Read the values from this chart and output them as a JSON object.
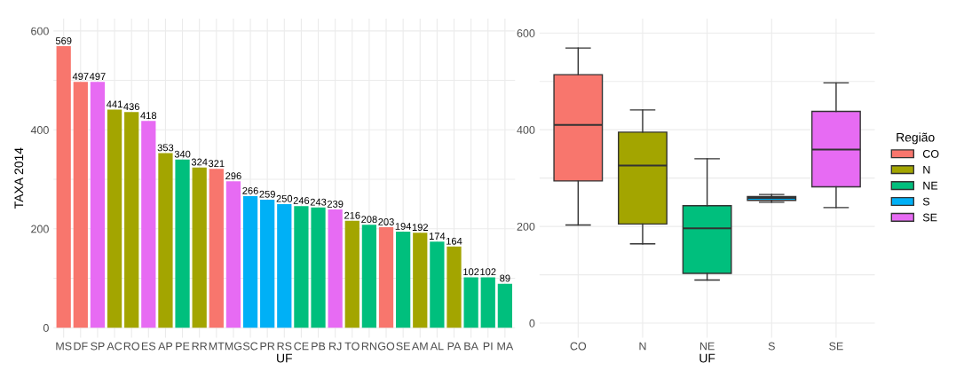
{
  "chart_data": [
    {
      "type": "bar",
      "xlabel": "UF",
      "ylabel": "TAXA 2014",
      "categories": [
        "MS",
        "DF",
        "SP",
        "AC",
        "RO",
        "ES",
        "AP",
        "PE",
        "RR",
        "MT",
        "MG",
        "SC",
        "PR",
        "RS",
        "CE",
        "PB",
        "RJ",
        "TO",
        "RN",
        "GO",
        "SE",
        "AM",
        "AL",
        "PA",
        "BA",
        "PI",
        "MA"
      ],
      "values": [
        569,
        497,
        497,
        441,
        436,
        418,
        353,
        340,
        324,
        321,
        296,
        266,
        259,
        250,
        246,
        243,
        239,
        216,
        208,
        203,
        194,
        192,
        174,
        164,
        102,
        102,
        89
      ],
      "colors": [
        "#f8766d",
        "#f8766d",
        "#e76bf3",
        "#a3a500",
        "#a3a500",
        "#e76bf3",
        "#a3a500",
        "#00bf7d",
        "#a3a500",
        "#f8766d",
        "#e76bf3",
        "#00b0f6",
        "#00b0f6",
        "#00b0f6",
        "#00bf7d",
        "#00bf7d",
        "#e76bf3",
        "#a3a500",
        "#00bf7d",
        "#f8766d",
        "#00bf7d",
        "#a3a500",
        "#00bf7d",
        "#a3a500",
        "#00bf7d",
        "#00bf7d",
        "#00bf7d"
      ],
      "data_labels": true,
      "ylim": [
        -20,
        625
      ],
      "yticks": [
        0,
        {
          "value": 100,
          "label": null
        },
        200,
        {
          "value": 300,
          "label": null
        },
        400,
        {
          "value": 500,
          "label": null
        },
        600
      ],
      "grid": true
    },
    {
      "type": "box",
      "xlabel": "UF",
      "legend_title": "Região",
      "categories": [
        "CO",
        "N",
        "NE",
        "S",
        "SE"
      ],
      "series": [
        {
          "name": "CO",
          "color": "#f8766d",
          "boxes": [
            {
              "low": 203,
              "q1": 294,
              "median": 410,
              "q3": 514,
              "high": 569
            },
            null,
            null,
            null,
            null
          ]
        },
        {
          "name": "N",
          "color": "#a3a500",
          "boxes": [
            null,
            {
              "low": 164,
              "q1": 205,
              "median": 326,
              "q3": 395,
              "high": 441
            },
            null,
            null,
            null
          ]
        },
        {
          "name": "NE",
          "color": "#00bf7d",
          "boxes": [
            null,
            null,
            {
              "low": 89,
              "q1": 103,
              "median": 196,
              "q3": 243,
              "high": 340
            },
            null,
            null
          ]
        },
        {
          "name": "S",
          "color": "#00b0f6",
          "boxes": [
            null,
            null,
            null,
            {
              "low": 250,
              "q1": 254,
              "median": 259,
              "q3": 262,
              "high": 266
            },
            null
          ]
        },
        {
          "name": "SE",
          "color": "#e76bf3",
          "boxes": [
            null,
            null,
            null,
            null,
            {
              "low": 239,
              "q1": 282,
              "median": 359,
              "q3": 438,
              "high": 497
            }
          ]
        }
      ],
      "ylim": [
        -30,
        630
      ],
      "yticks": [
        0,
        {
          "value": 100,
          "label": null
        },
        200,
        {
          "value": 300,
          "label": null
        },
        400,
        {
          "value": 500,
          "label": null
        },
        600
      ],
      "grid": true,
      "legend": "right"
    }
  ]
}
